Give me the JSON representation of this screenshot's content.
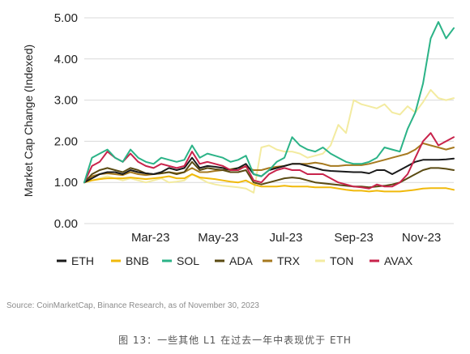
{
  "chart_data": {
    "type": "line",
    "ylabel": "Market Cap Change (Indexed)",
    "ylim": [
      0,
      5
    ],
    "yticks": [
      "0.00",
      "1.00",
      "2.00",
      "3.00",
      "4.00",
      "5.00"
    ],
    "xlim": [
      0,
      48
    ],
    "xticks": [
      {
        "label": "Mar-23",
        "x": 8.6
      },
      {
        "label": "May-23",
        "x": 17.4
      },
      {
        "label": "Jul-23",
        "x": 26.2
      },
      {
        "label": "Sep-23",
        "x": 35.0
      },
      {
        "label": "Nov-23",
        "x": 43.8
      }
    ],
    "grid": "horizontal",
    "legend_position": "bottom",
    "x": [
      0,
      1,
      2,
      3,
      4,
      5,
      6,
      7,
      8,
      9,
      10,
      11,
      12,
      13,
      14,
      15,
      16,
      17,
      18,
      19,
      20,
      21,
      22,
      23,
      24,
      25,
      26,
      27,
      28,
      29,
      30,
      31,
      32,
      33,
      34,
      35,
      36,
      37,
      38,
      39,
      40,
      41,
      42,
      43,
      44,
      45,
      46,
      47,
      48
    ],
    "series": [
      {
        "name": "ETH",
        "color": "#1a1a1a",
        "values": [
          1.0,
          1.1,
          1.2,
          1.25,
          1.25,
          1.2,
          1.3,
          1.25,
          1.22,
          1.2,
          1.25,
          1.35,
          1.3,
          1.35,
          1.6,
          1.35,
          1.4,
          1.38,
          1.35,
          1.3,
          1.35,
          1.45,
          1.2,
          1.15,
          1.3,
          1.35,
          1.4,
          1.45,
          1.45,
          1.4,
          1.35,
          1.3,
          1.28,
          1.27,
          1.26,
          1.25,
          1.25,
          1.22,
          1.3,
          1.3,
          1.2,
          1.3,
          1.4,
          1.5,
          1.55,
          1.55,
          1.55,
          1.56,
          1.58
        ]
      },
      {
        "name": "BNB",
        "color": "#f0b90b",
        "values": [
          1.0,
          1.05,
          1.08,
          1.1,
          1.1,
          1.1,
          1.12,
          1.1,
          1.08,
          1.1,
          1.12,
          1.15,
          1.1,
          1.1,
          1.2,
          1.12,
          1.1,
          1.08,
          1.05,
          1.02,
          1.0,
          1.05,
          0.95,
          0.9,
          0.9,
          0.9,
          0.92,
          0.9,
          0.9,
          0.9,
          0.88,
          0.88,
          0.88,
          0.85,
          0.82,
          0.8,
          0.8,
          0.78,
          0.8,
          0.78,
          0.78,
          0.78,
          0.8,
          0.82,
          0.85,
          0.86,
          0.86,
          0.86,
          0.82
        ]
      },
      {
        "name": "SOL",
        "color": "#2bb387",
        "values": [
          1.0,
          1.6,
          1.7,
          1.8,
          1.6,
          1.5,
          1.8,
          1.6,
          1.5,
          1.45,
          1.6,
          1.55,
          1.5,
          1.55,
          1.9,
          1.6,
          1.7,
          1.65,
          1.6,
          1.5,
          1.55,
          1.65,
          1.2,
          1.15,
          1.3,
          1.5,
          1.6,
          2.1,
          1.9,
          1.8,
          1.75,
          1.85,
          1.7,
          1.6,
          1.5,
          1.45,
          1.45,
          1.5,
          1.6,
          1.85,
          1.8,
          1.75,
          2.3,
          2.7,
          3.4,
          4.5,
          4.9,
          4.5,
          4.75
        ]
      },
      {
        "name": "ADA",
        "color": "#5a4a12",
        "values": [
          1.0,
          1.2,
          1.3,
          1.35,
          1.3,
          1.25,
          1.35,
          1.3,
          1.22,
          1.2,
          1.22,
          1.25,
          1.2,
          1.25,
          1.5,
          1.3,
          1.35,
          1.32,
          1.3,
          1.25,
          1.25,
          1.3,
          1.0,
          0.95,
          1.0,
          1.05,
          1.1,
          1.12,
          1.1,
          1.05,
          1.0,
          0.98,
          0.96,
          0.94,
          0.92,
          0.9,
          0.9,
          0.88,
          0.9,
          0.92,
          0.95,
          1.0,
          1.1,
          1.2,
          1.3,
          1.35,
          1.35,
          1.33,
          1.3
        ]
      },
      {
        "name": "TRX",
        "color": "#a6791f",
        "values": [
          1.0,
          1.15,
          1.2,
          1.22,
          1.2,
          1.18,
          1.25,
          1.2,
          1.18,
          1.2,
          1.22,
          1.25,
          1.22,
          1.25,
          1.35,
          1.25,
          1.25,
          1.28,
          1.3,
          1.32,
          1.35,
          1.38,
          1.3,
          1.3,
          1.35,
          1.38,
          1.4,
          1.45,
          1.45,
          1.45,
          1.48,
          1.45,
          1.4,
          1.4,
          1.42,
          1.42,
          1.42,
          1.45,
          1.5,
          1.55,
          1.6,
          1.65,
          1.7,
          1.8,
          1.95,
          1.9,
          1.85,
          1.8,
          1.85
        ]
      },
      {
        "name": "TON",
        "color": "#f3eba0",
        "values": [
          1.0,
          1.05,
          1.1,
          1.15,
          1.1,
          1.05,
          1.1,
          1.05,
          1.0,
          1.05,
          1.1,
          1.0,
          1.02,
          1.05,
          1.2,
          1.1,
          1.0,
          0.95,
          0.92,
          0.9,
          0.88,
          0.85,
          0.75,
          1.85,
          1.9,
          1.8,
          1.75,
          1.75,
          1.7,
          1.6,
          1.65,
          1.7,
          1.9,
          2.4,
          2.2,
          3.0,
          2.9,
          2.85,
          2.8,
          2.9,
          2.7,
          2.65,
          2.85,
          2.7,
          2.95,
          3.25,
          3.05,
          3.0,
          3.05
        ]
      },
      {
        "name": "AVAX",
        "color": "#c8234b",
        "values": [
          1.0,
          1.4,
          1.5,
          1.75,
          1.6,
          1.5,
          1.7,
          1.5,
          1.4,
          1.35,
          1.45,
          1.4,
          1.35,
          1.4,
          1.75,
          1.45,
          1.5,
          1.45,
          1.4,
          1.3,
          1.3,
          1.4,
          1.05,
          1.0,
          1.2,
          1.3,
          1.35,
          1.3,
          1.3,
          1.2,
          1.2,
          1.2,
          1.1,
          1.0,
          0.95,
          0.9,
          0.88,
          0.85,
          0.95,
          0.9,
          0.9,
          1.0,
          1.2,
          1.6,
          2.0,
          2.2,
          1.9,
          2.0,
          2.1
        ]
      }
    ]
  },
  "source_text": "Source: CoinMarketCap, Binance Research, as of November 30, 2023",
  "caption_text": "图 13：一些其他 L1 在过去一年中表现优于 ETH"
}
